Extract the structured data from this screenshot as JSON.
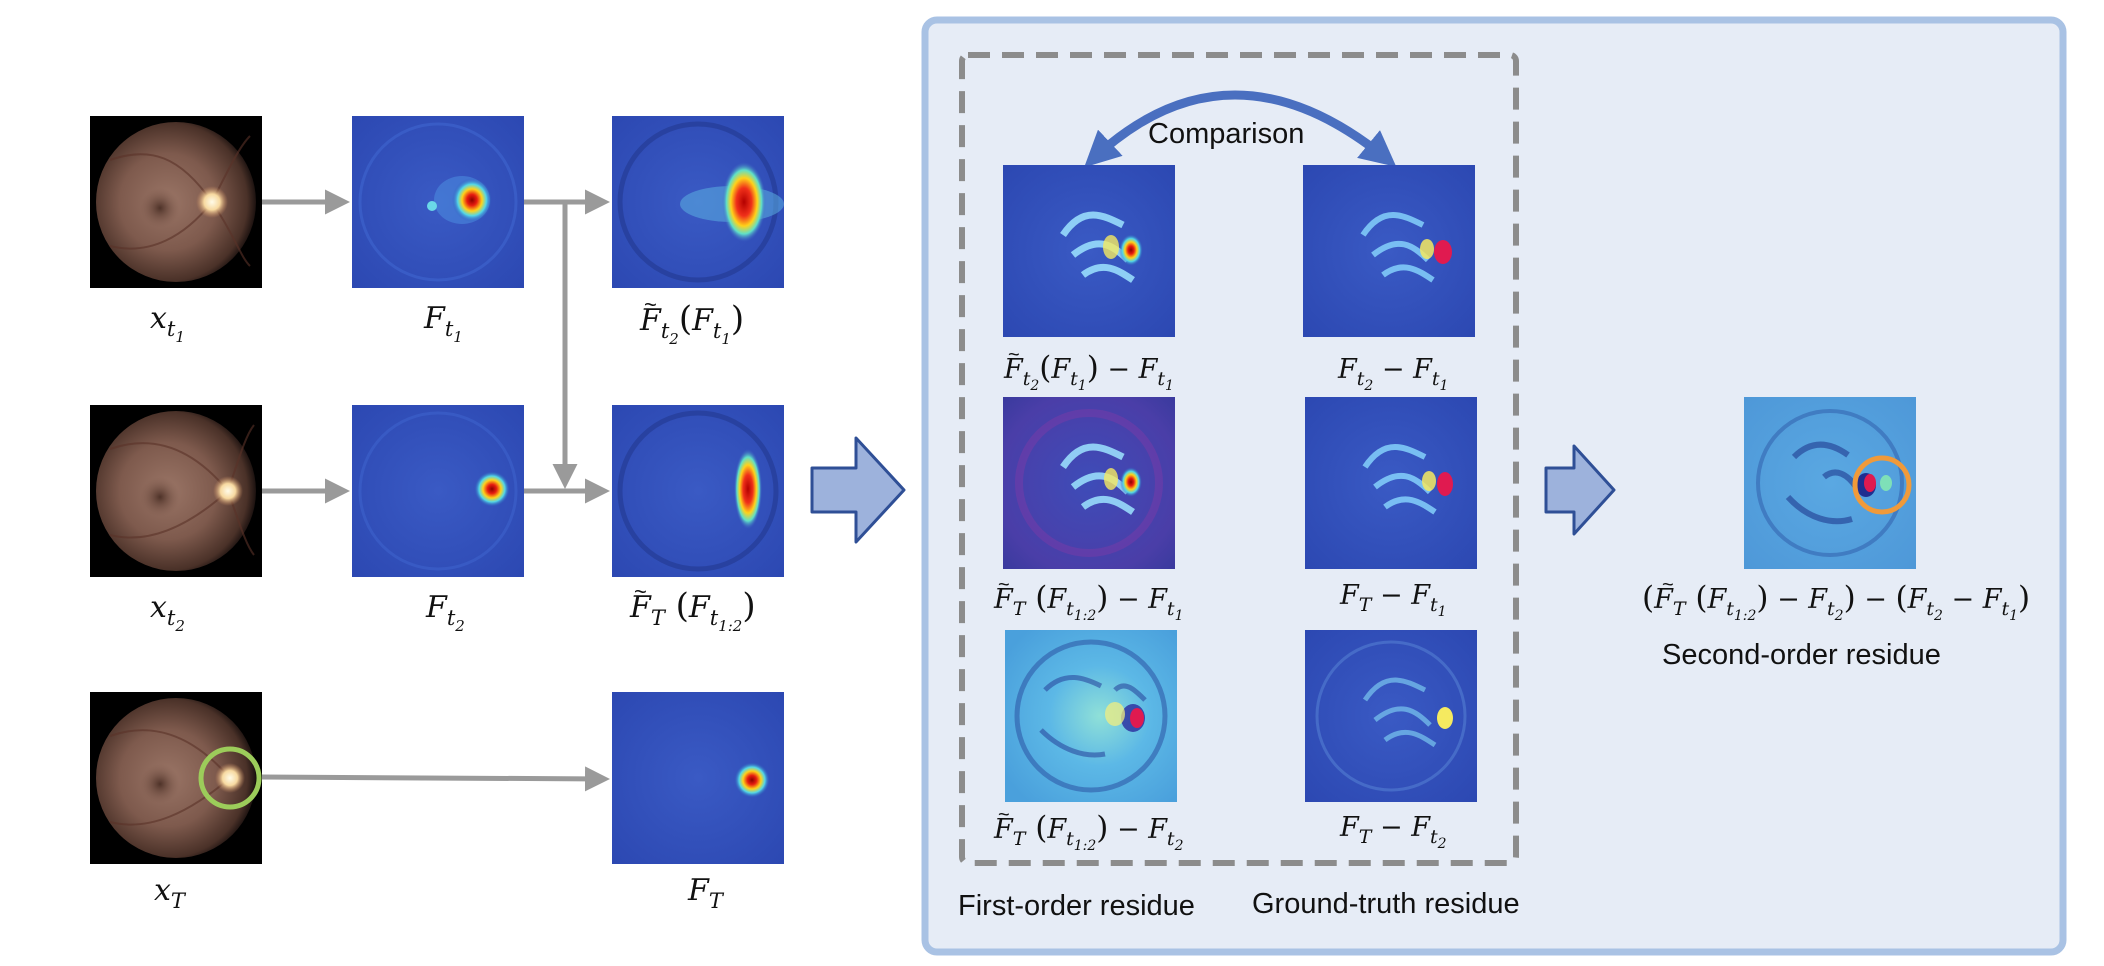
{
  "colors": {
    "panel_fill": "#e6ecf6",
    "panel_border": "#a9c2e4",
    "dashed_border": "#8c8c8c",
    "arrow_gray": "#9a9a9a",
    "block_arrow_fill": "#9db2dc",
    "block_arrow_stroke": "#2f4f96",
    "comparison_arrow": "#4a6fc0",
    "highlight_green": "#9ccc5a",
    "highlight_orange": "#f09a3a"
  },
  "left": {
    "inputs": [
      {
        "var": "x",
        "sub": "t",
        "subsub": "1"
      },
      {
        "var": "x",
        "sub": "t",
        "subsub": "2"
      },
      {
        "var": "x",
        "sub": "T",
        "subsub": ""
      }
    ],
    "features": [
      {
        "var": "F",
        "sub": "t",
        "subsub": "1"
      },
      {
        "var": "F",
        "sub": "t",
        "subsub": "2"
      }
    ],
    "predictions": [
      {
        "tilde_var": "F",
        "sub": "t",
        "subsub": "2",
        "arg_var": "F",
        "arg_sub": "t",
        "arg_subsub": "1"
      },
      {
        "tilde_var": "F",
        "sub": "T",
        "subsub": "",
        "arg_var": "F",
        "arg_sub": "t",
        "arg_subsub": "1:2"
      }
    ],
    "target_feature": {
      "var": "F",
      "sub": "T"
    }
  },
  "middle": {
    "comparison_label": "Comparison",
    "first_order_title": "First-order residue",
    "ground_truth_title": "Ground-truth residue",
    "first_order_labels": [
      {
        "tilde_sub": "t",
        "tilde_subsub": "2",
        "arg_sub": "t",
        "arg_subsub": "1",
        "minus_sub": "t",
        "minus_subsub": "1"
      },
      {
        "tilde_sub": "T",
        "tilde_subsub": "",
        "arg_sub": "t",
        "arg_subsub": "1:2",
        "minus_sub": "t",
        "minus_subsub": "1"
      },
      {
        "tilde_sub": "T",
        "tilde_subsub": "",
        "arg_sub": "t",
        "arg_subsub": "1:2",
        "minus_sub": "t",
        "minus_subsub": "2"
      }
    ],
    "ground_truth_labels": [
      {
        "a_sub": "t",
        "a_subsub": "2",
        "b_sub": "t",
        "b_subsub": "1"
      },
      {
        "a_sub": "T",
        "a_subsub": "",
        "b_sub": "t",
        "b_subsub": "1"
      },
      {
        "a_sub": "T",
        "a_subsub": "",
        "b_sub": "t",
        "b_subsub": "2"
      }
    ]
  },
  "right": {
    "title": "Second-order residue",
    "formula": {
      "tilde_sub": "T",
      "arg_sub": "t",
      "arg_subsub": "1:2",
      "m1_sub": "t",
      "m1_subsub": "2",
      "m2_sub": "t",
      "m2_subsub": "2",
      "m3_sub": "t",
      "m3_subsub": "1"
    }
  }
}
